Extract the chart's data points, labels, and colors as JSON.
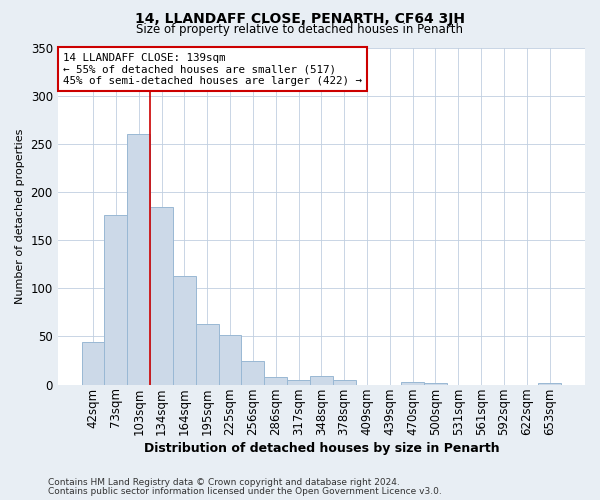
{
  "title": "14, LLANDAFF CLOSE, PENARTH, CF64 3JH",
  "subtitle": "Size of property relative to detached houses in Penarth",
  "xlabel": "Distribution of detached houses by size in Penarth",
  "ylabel": "Number of detached properties",
  "bar_labels": [
    "42sqm",
    "73sqm",
    "103sqm",
    "134sqm",
    "164sqm",
    "195sqm",
    "225sqm",
    "256sqm",
    "286sqm",
    "317sqm",
    "348sqm",
    "378sqm",
    "409sqm",
    "439sqm",
    "470sqm",
    "500sqm",
    "531sqm",
    "561sqm",
    "592sqm",
    "622sqm",
    "653sqm"
  ],
  "bar_values": [
    44,
    176,
    260,
    184,
    113,
    63,
    52,
    25,
    8,
    5,
    9,
    5,
    0,
    0,
    3,
    2,
    0,
    0,
    0,
    0,
    2
  ],
  "bar_color": "#ccd9e8",
  "bar_edgecolor": "#99b8d4",
  "vline_x_index": 3,
  "vline_color": "#cc0000",
  "annotation_text": "14 LLANDAFF CLOSE: 139sqm\n← 55% of detached houses are smaller (517)\n45% of semi-detached houses are larger (422) →",
  "annotation_box_edgecolor": "#cc0000",
  "annotation_box_facecolor": "#ffffff",
  "ylim": [
    0,
    350
  ],
  "yticks": [
    0,
    50,
    100,
    150,
    200,
    250,
    300,
    350
  ],
  "footer_line1": "Contains HM Land Registry data © Crown copyright and database right 2024.",
  "footer_line2": "Contains public sector information licensed under the Open Government Licence v3.0.",
  "bg_color": "#e8eef4",
  "plot_bg_color": "#ffffff",
  "grid_color": "#c0cfe0"
}
